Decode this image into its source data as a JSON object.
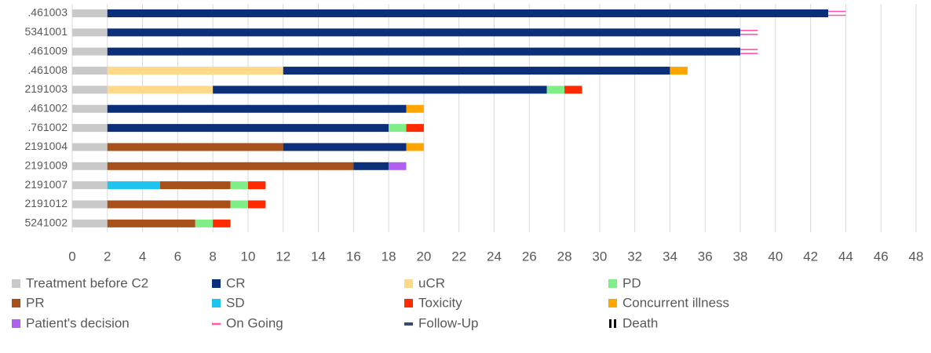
{
  "chart_data": {
    "type": "swimmer",
    "categories": [
      ".461003",
      "5341001",
      ".461009",
      ".461008",
      "2191003",
      ".461002",
      ".761002",
      "2191004",
      "2191009",
      "2191007",
      "2191012",
      "5241002"
    ],
    "xlim": [
      0,
      48
    ],
    "xticks": [
      0,
      2,
      4,
      6,
      8,
      10,
      12,
      14,
      16,
      18,
      20,
      22,
      24,
      26,
      28,
      30,
      32,
      34,
      36,
      38,
      40,
      42,
      44,
      46,
      48
    ],
    "grid": true,
    "series": [
      {
        "name": "Treatment before C2",
        "color": "#c9c9c9",
        "marker": "bar",
        "values": [
          2,
          2,
          2,
          2,
          2,
          2,
          2,
          2,
          2,
          2,
          2,
          2
        ]
      },
      {
        "name": "CR",
        "color": "#0b2f78",
        "marker": "bar",
        "values": [
          41,
          36,
          36,
          22,
          19,
          17,
          16,
          7,
          2,
          null,
          null,
          null
        ]
      },
      {
        "name": "uCR",
        "color": "#ffd98a",
        "marker": "bar",
        "values": [
          null,
          null,
          null,
          10,
          6,
          null,
          null,
          null,
          null,
          null,
          null,
          null
        ]
      },
      {
        "name": "PD",
        "color": "#80ee88",
        "marker": "bar",
        "values": [
          null,
          null,
          null,
          null,
          1,
          null,
          1,
          null,
          null,
          1,
          1,
          1
        ]
      },
      {
        "name": "PR",
        "color": "#a8501a",
        "marker": "bar",
        "values": [
          null,
          null,
          null,
          null,
          null,
          null,
          null,
          10,
          14,
          4,
          7,
          5
        ]
      },
      {
        "name": "SD",
        "color": "#1ec3ef",
        "marker": "bar",
        "values": [
          null,
          null,
          null,
          null,
          null,
          null,
          null,
          null,
          null,
          3,
          null,
          null
        ]
      },
      {
        "name": "Toxicity",
        "color": "#ff2a00",
        "marker": "bar",
        "values": [
          null,
          null,
          null,
          null,
          1,
          null,
          1,
          null,
          null,
          1,
          1,
          1
        ]
      },
      {
        "name": "Concurrent illness",
        "color": "#ffa500",
        "marker": "bar",
        "values": [
          null,
          null,
          null,
          1,
          null,
          1,
          null,
          1,
          null,
          null,
          null,
          null
        ]
      },
      {
        "name": "Patient's decision",
        "color": "#b060f0",
        "marker": "bar",
        "values": [
          null,
          null,
          null,
          null,
          null,
          null,
          null,
          null,
          1,
          null,
          null,
          null
        ]
      },
      {
        "name": "On Going",
        "color": "#ff55aa",
        "marker": "lines",
        "values": [
          1,
          1,
          1,
          null,
          null,
          null,
          null,
          null,
          null,
          null,
          null,
          null
        ]
      },
      {
        "name": "Follow-Up",
        "color": "#3a4a70",
        "marker": "dash",
        "values": [
          null,
          null,
          null,
          null,
          null,
          null,
          null,
          null,
          null,
          null,
          null,
          null
        ]
      },
      {
        "name": "Death",
        "color": "#111111",
        "marker": "double-bar",
        "values": [
          null,
          null,
          null,
          null,
          null,
          null,
          null,
          null,
          null,
          null,
          null,
          null
        ]
      }
    ]
  }
}
